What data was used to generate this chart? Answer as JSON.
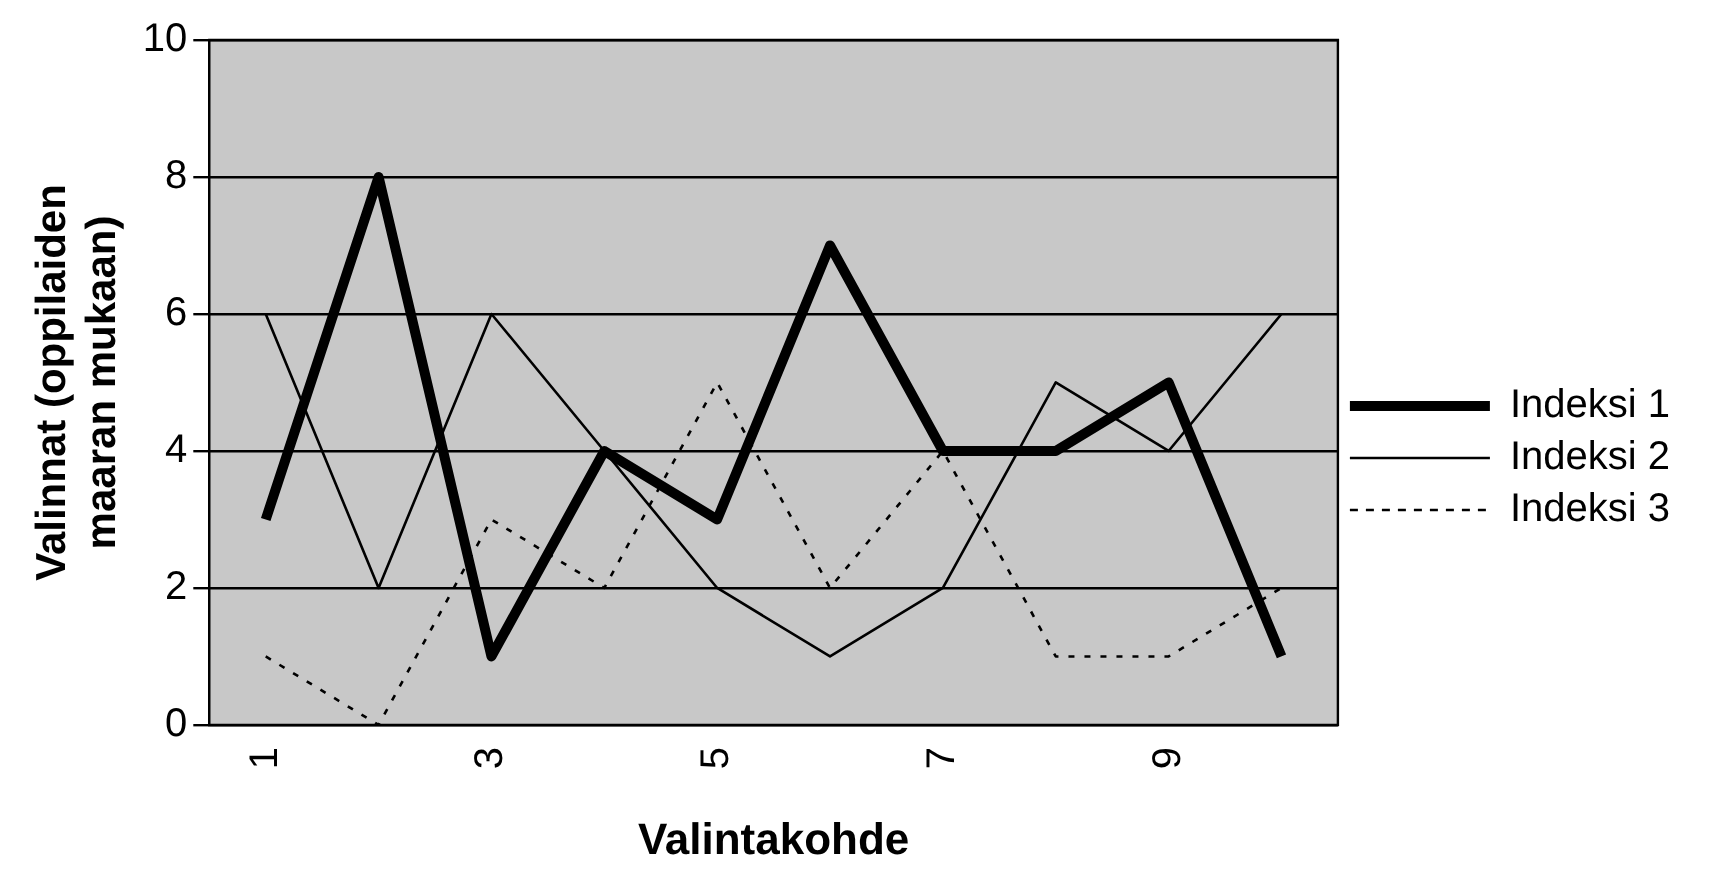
{
  "chart_data": {
    "type": "line",
    "xlabel": "Valintakohde",
    "ylabel": "Valinnat (oppilaiden maaran mukaan)",
    "categories": [
      "1",
      null,
      "3",
      null,
      "5",
      null,
      "7",
      null,
      "9",
      null
    ],
    "series": [
      {
        "name": "Indeksi 1",
        "color": "#000000",
        "line_style": "solid",
        "values": [
          3,
          8,
          1,
          4,
          3,
          7,
          4,
          4,
          5,
          1
        ]
      },
      {
        "name": "Indeksi 2",
        "color": "#000000",
        "line_style": "solid",
        "values": [
          6,
          2,
          6,
          4,
          2,
          1,
          2,
          5,
          4,
          6
        ]
      },
      {
        "name": "Indeksi 3",
        "color": "#000000",
        "line_style": "dotted",
        "values": [
          1,
          0,
          3,
          2,
          5,
          2,
          4,
          1,
          1,
          2
        ]
      }
    ],
    "ylim": [
      0,
      10
    ],
    "yticks": [
      0,
      2,
      4,
      6,
      8,
      10
    ],
    "grid": "y",
    "legend": "right",
    "marker": "none"
  }
}
